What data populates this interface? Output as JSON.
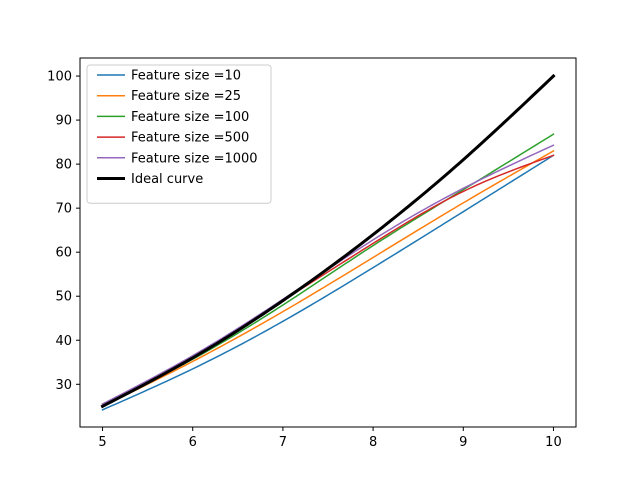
{
  "chart_data": {
    "type": "line",
    "title": "",
    "xlabel": "",
    "ylabel": "",
    "xlim": [
      4.75,
      10.25
    ],
    "ylim": [
      20.3,
      104.1
    ],
    "grid": false,
    "legend_placement": "top-left",
    "x_ticks": [
      5,
      6,
      7,
      8,
      9,
      10
    ],
    "y_ticks": [
      30,
      40,
      50,
      60,
      70,
      80,
      90,
      100
    ],
    "x": [
      5,
      6,
      7,
      8,
      9,
      10
    ],
    "series": [
      {
        "name": "Feature size =10",
        "color": "#1f77b4",
        "width": 1.5,
        "values": [
          24.2,
          33.5,
          44.3,
          56.5,
          69.2,
          82.0
        ]
      },
      {
        "name": "Feature size =25",
        "color": "#ff7f0e",
        "width": 1.5,
        "values": [
          25.0,
          35.2,
          46.5,
          58.8,
          71.2,
          83.0
        ]
      },
      {
        "name": "Feature size =100",
        "color": "#2ca02c",
        "width": 1.5,
        "values": [
          25.3,
          35.7,
          48.0,
          61.5,
          74.2,
          86.8
        ]
      },
      {
        "name": "Feature size =500",
        "color": "#d62728",
        "width": 1.5,
        "values": [
          25.5,
          36.4,
          49.0,
          62.0,
          73.8,
          82.0
        ]
      },
      {
        "name": "Feature size =1000",
        "color": "#9467bd",
        "width": 1.5,
        "values": [
          25.5,
          36.5,
          49.3,
          62.8,
          74.5,
          84.3
        ]
      },
      {
        "name": "Ideal curve",
        "color": "#000000",
        "width": 3,
        "values": [
          25,
          36,
          49,
          64,
          81,
          100
        ]
      }
    ]
  }
}
